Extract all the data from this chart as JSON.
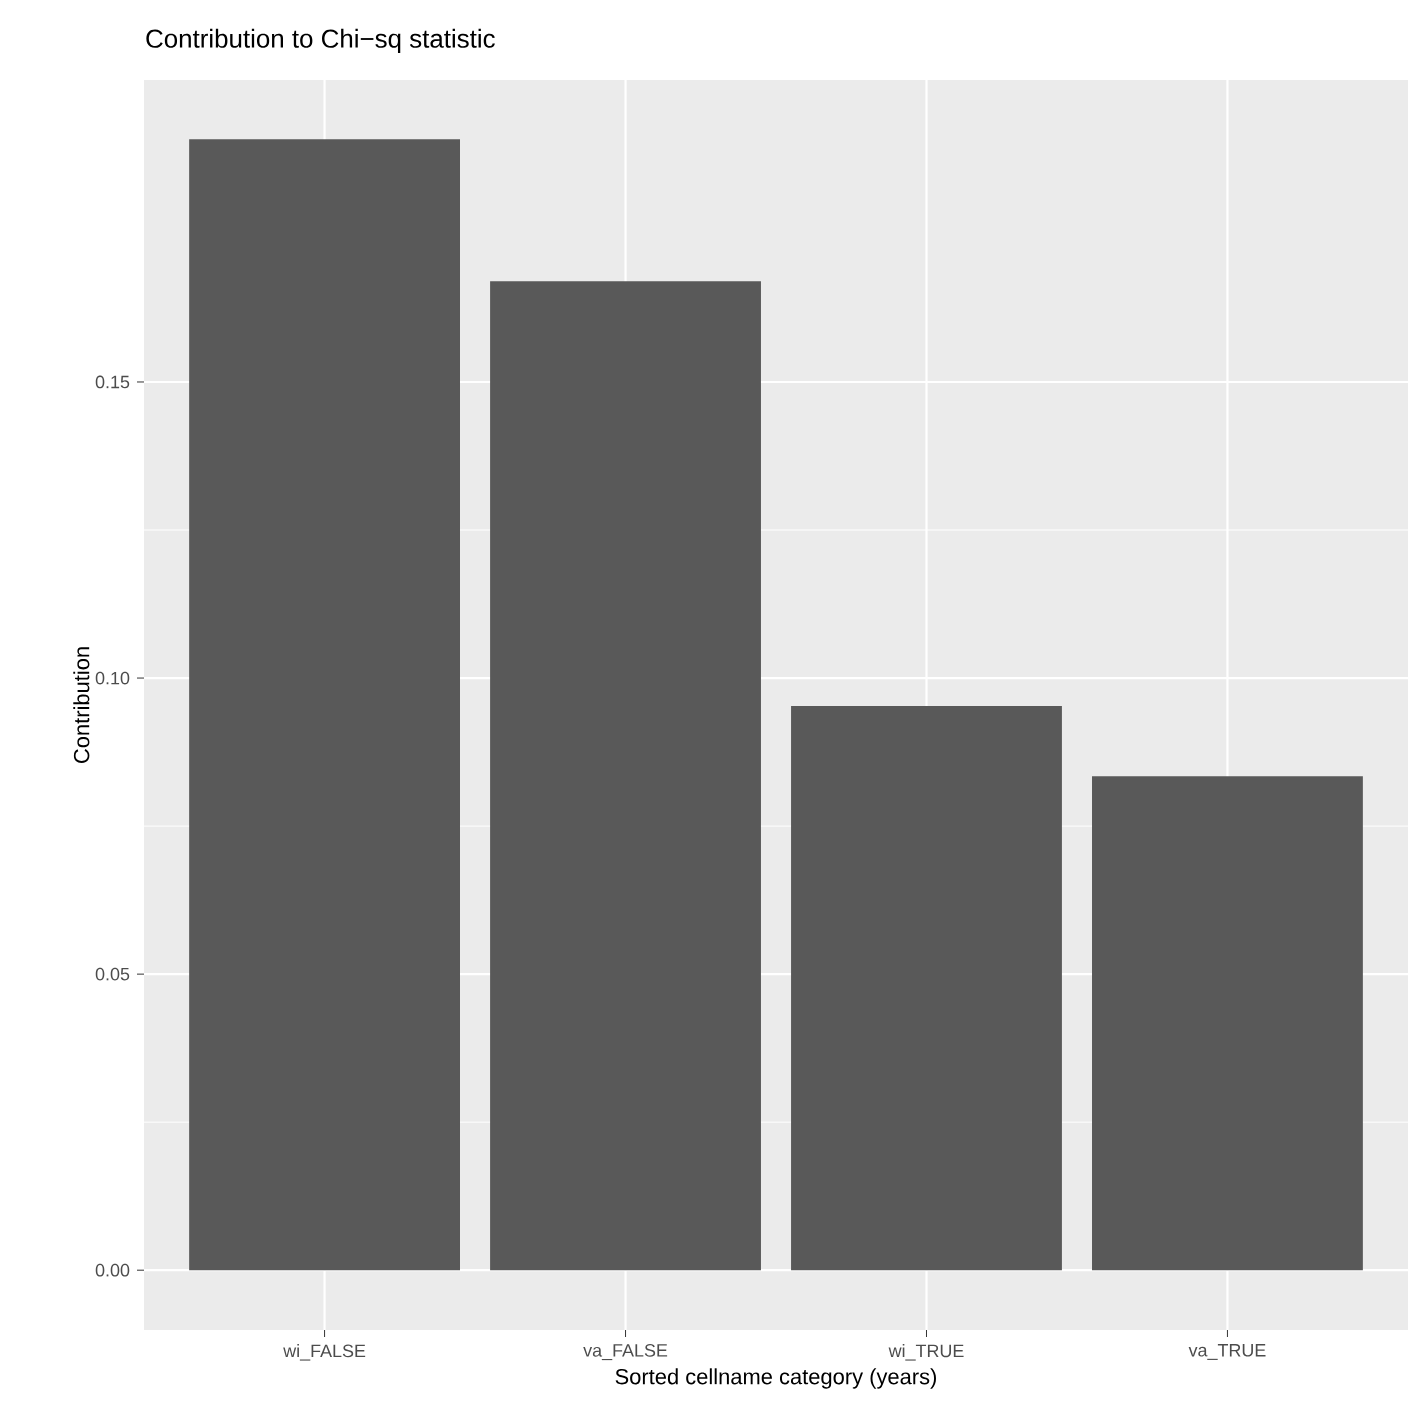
{
  "chart_data": {
    "type": "bar",
    "title": "Contribution to Chi−sq statistic",
    "xlabel": "Sorted cellname category (years)",
    "ylabel": "Contribution",
    "categories": [
      "wi_FALSE",
      "va_FALSE",
      "wi_TRUE",
      "va_TRUE"
    ],
    "values": [
      0.191,
      0.167,
      0.0953,
      0.0834
    ],
    "color": "#595959",
    "ylim": [
      -0.0101,
      0.201
    ],
    "yticks": [
      {
        "value": 0,
        "label": "0.00"
      },
      {
        "value": 0.05,
        "label": "0.05"
      },
      {
        "value": 0.1,
        "label": "0.10"
      },
      {
        "value": 0.15,
        "label": "0.15"
      }
    ],
    "grid": true
  }
}
